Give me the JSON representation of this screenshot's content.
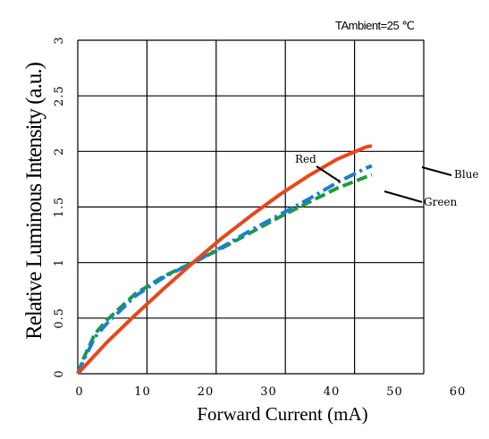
{
  "chart_data": {
    "type": "line",
    "annotation": "TAmbient=25 ℃",
    "xlabel": "Forward Current (mA)",
    "ylabel": "Relative Luminous Intensity (a.u.)",
    "xlim": [
      0,
      60
    ],
    "ylim": [
      0,
      3
    ],
    "x_ticks": [
      "0",
      "10",
      "20",
      "30",
      "40",
      "50",
      "60"
    ],
    "y_ticks": [
      "0",
      "0.5",
      "1",
      "1.5",
      "2",
      "2.5",
      "3"
    ],
    "grid": true,
    "series": [
      {
        "name": "Red",
        "color": "#e8471a",
        "style": "solid",
        "x": [
          0,
          5,
          10,
          15,
          20,
          25,
          30,
          35,
          40,
          45,
          50,
          51
        ],
        "y": [
          0,
          0.28,
          0.53,
          0.77,
          1.0,
          1.22,
          1.42,
          1.61,
          1.78,
          1.93,
          2.04,
          2.05
        ]
      },
      {
        "name": "Blue",
        "color": "#1a7fd4",
        "style": "dashdot",
        "x": [
          0,
          1,
          3,
          5,
          10,
          15,
          20,
          25,
          30,
          35,
          40,
          45,
          50,
          51
        ],
        "y": [
          0,
          0.12,
          0.33,
          0.45,
          0.7,
          0.87,
          1.0,
          1.14,
          1.29,
          1.43,
          1.57,
          1.72,
          1.85,
          1.87
        ]
      },
      {
        "name": "Green",
        "color": "#1e9a3c",
        "style": "dashed",
        "x": [
          0,
          1,
          3,
          5,
          10,
          15,
          20,
          25,
          30,
          35,
          40,
          45,
          50,
          51
        ],
        "y": [
          0,
          0.14,
          0.36,
          0.48,
          0.72,
          0.88,
          1.0,
          1.13,
          1.27,
          1.41,
          1.54,
          1.67,
          1.77,
          1.79
        ]
      }
    ]
  }
}
